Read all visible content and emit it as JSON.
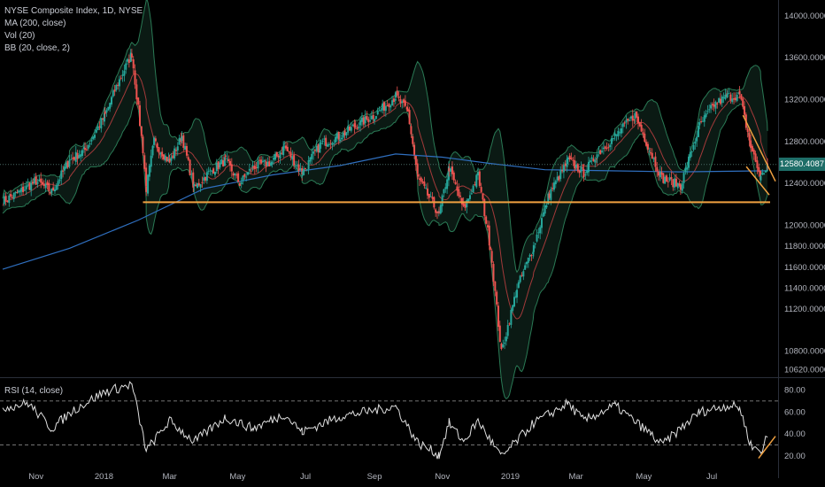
{
  "legend": {
    "title": "NYSE Composite Index, 1D, NYSE",
    "ma": "MA (200, close)",
    "vol": "Vol (20)",
    "bb": "BB (20, close, 2)"
  },
  "rsi_panel": {
    "label": "RSI (14, close)"
  },
  "price_tag": {
    "value": "12580.4087"
  },
  "colors": {
    "background": "#000000",
    "up_candle": "#26a69a",
    "down_candle": "#ef5350",
    "ma200": "#2f6fbf",
    "bb_band": "#2a7a55",
    "bb_basis": "#a33a3a",
    "bb_fill": "#0b1a14",
    "support_line": "#f0a040",
    "rsi_line": "#e0e0e0",
    "price_tag_bg": "#1e6e68"
  },
  "chart_data": [
    {
      "type": "candlestick",
      "title": "NYSE Composite Index, 1D, NYSE",
      "indicators": [
        "MA (200, close)",
        "Vol (20)",
        "BB (20, close, 2)"
      ],
      "x_labels": [
        "Nov",
        "2018",
        "Mar",
        "May",
        "Jul",
        "Sep",
        "Nov",
        "2019",
        "Mar",
        "May",
        "Jul"
      ],
      "y_ticks": [
        "14000.0000",
        "13600.0000",
        "13200.0000",
        "12800.0000",
        "12400.0000",
        "12000.0000",
        "11800.0000",
        "11600.0000",
        "11400.0000",
        "11200.0000",
        "10800.0000",
        "10620.0000"
      ],
      "ylim": [
        10550,
        14150
      ],
      "close_series": [
        [
          "2017-10-02",
          12230
        ],
        [
          "2017-10-16",
          12310
        ],
        [
          "2017-11-01",
          12420
        ],
        [
          "2017-11-15",
          12320
        ],
        [
          "2017-12-01",
          12620
        ],
        [
          "2017-12-15",
          12720
        ],
        [
          "2018-01-02",
          13050
        ],
        [
          "2018-01-12",
          13320
        ],
        [
          "2018-01-26",
          13640
        ],
        [
          "2018-02-05",
          12720
        ],
        [
          "2018-02-08",
          12350
        ],
        [
          "2018-02-15",
          12800
        ],
        [
          "2018-03-01",
          12600
        ],
        [
          "2018-03-12",
          12850
        ],
        [
          "2018-03-23",
          12350
        ],
        [
          "2018-04-05",
          12500
        ],
        [
          "2018-04-20",
          12620
        ],
        [
          "2018-05-03",
          12400
        ],
        [
          "2018-05-15",
          12560
        ],
        [
          "2018-06-01",
          12600
        ],
        [
          "2018-06-12",
          12750
        ],
        [
          "2018-06-28",
          12500
        ],
        [
          "2018-07-15",
          12780
        ],
        [
          "2018-08-01",
          12850
        ],
        [
          "2018-08-15",
          12950
        ],
        [
          "2018-09-01",
          13050
        ],
        [
          "2018-09-20",
          13230
        ],
        [
          "2018-10-01",
          13080
        ],
        [
          "2018-10-10",
          12450
        ],
        [
          "2018-10-29",
          12100
        ],
        [
          "2018-11-07",
          12550
        ],
        [
          "2018-11-20",
          12150
        ],
        [
          "2018-12-03",
          12480
        ],
        [
          "2018-12-14",
          11800
        ],
        [
          "2018-12-24",
          10780
        ],
        [
          "2019-01-07",
          11400
        ],
        [
          "2019-01-22",
          11800
        ],
        [
          "2019-02-05",
          12300
        ],
        [
          "2019-02-22",
          12620
        ],
        [
          "2019-03-08",
          12500
        ],
        [
          "2019-03-20",
          12680
        ],
        [
          "2019-04-05",
          12850
        ],
        [
          "2019-04-23",
          13050
        ],
        [
          "2019-05-07",
          12700
        ],
        [
          "2019-05-17",
          12450
        ],
        [
          "2019-06-03",
          12380
        ],
        [
          "2019-06-20",
          12950
        ],
        [
          "2019-07-03",
          13150
        ],
        [
          "2019-07-15",
          13230
        ],
        [
          "2019-07-26",
          13240
        ],
        [
          "2019-08-05",
          12750
        ],
        [
          "2019-08-14",
          12450
        ],
        [
          "2019-08-20",
          12580
        ]
      ],
      "ma200_series": [
        [
          "2017-10-02",
          11580
        ],
        [
          "2017-12-01",
          11780
        ],
        [
          "2018-02-01",
          12050
        ],
        [
          "2018-04-01",
          12350
        ],
        [
          "2018-06-01",
          12480
        ],
        [
          "2018-08-01",
          12570
        ],
        [
          "2018-09-20",
          12680
        ],
        [
          "2018-11-01",
          12650
        ],
        [
          "2018-12-14",
          12590
        ],
        [
          "2019-02-01",
          12530
        ],
        [
          "2019-04-01",
          12520
        ],
        [
          "2019-06-01",
          12510
        ],
        [
          "2019-08-20",
          12520
        ]
      ],
      "support_level": 12220,
      "last_price": 12580.4087
    },
    {
      "type": "line",
      "title": "RSI (14, close)",
      "y_ticks": [
        "80.00",
        "60.00",
        "40.00",
        "20.00"
      ],
      "ylim": [
        12,
        90
      ],
      "reference_lines": [
        70,
        30
      ],
      "rsi_series": [
        [
          "2017-10-02",
          64
        ],
        [
          "2017-10-25",
          68
        ],
        [
          "2017-11-15",
          45
        ],
        [
          "2017-12-05",
          62
        ],
        [
          "2018-01-01",
          78
        ],
        [
          "2018-01-26",
          85
        ],
        [
          "2018-02-08",
          25
        ],
        [
          "2018-03-01",
          52
        ],
        [
          "2018-03-23",
          33
        ],
        [
          "2018-04-20",
          55
        ],
        [
          "2018-05-15",
          45
        ],
        [
          "2018-06-12",
          58
        ],
        [
          "2018-06-28",
          42
        ],
        [
          "2018-08-01",
          56
        ],
        [
          "2018-09-20",
          65
        ],
        [
          "2018-10-10",
          32
        ],
        [
          "2018-10-29",
          21
        ],
        [
          "2018-11-07",
          50
        ],
        [
          "2018-11-20",
          33
        ],
        [
          "2018-12-03",
          52
        ],
        [
          "2018-12-24",
          19
        ],
        [
          "2019-01-22",
          50
        ],
        [
          "2019-02-22",
          68
        ],
        [
          "2019-03-08",
          52
        ],
        [
          "2019-04-05",
          66
        ],
        [
          "2019-05-07",
          40
        ],
        [
          "2019-05-17",
          30
        ],
        [
          "2019-06-20",
          60
        ],
        [
          "2019-07-15",
          66
        ],
        [
          "2019-07-26",
          64
        ],
        [
          "2019-08-05",
          30
        ],
        [
          "2019-08-14",
          24
        ],
        [
          "2019-08-20",
          38
        ]
      ]
    }
  ]
}
